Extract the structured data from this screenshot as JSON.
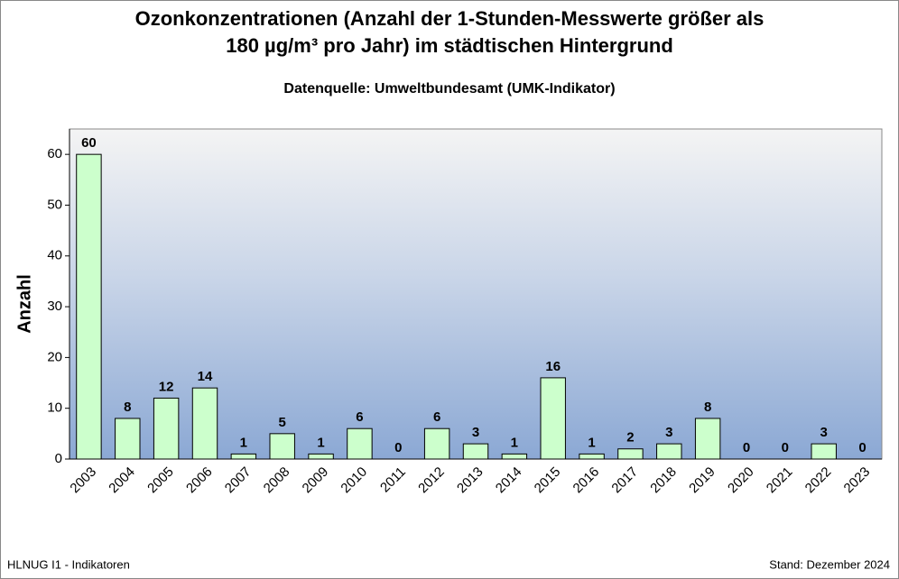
{
  "chart_data": {
    "type": "bar",
    "title": [
      "Ozonkonzentrationen (Anzahl der 1-Stunden-Messwerte größer als",
      "180 µg/m³ pro Jahr) im städtischen Hintergrund"
    ],
    "subtitle": "Datenquelle: Umweltbundesamt (UMK-Indikator)",
    "y_label": "Anzahl",
    "categories": [
      "2003",
      "2004",
      "2005",
      "2006",
      "2007",
      "2008",
      "2009",
      "2010",
      "2011",
      "2012",
      "2013",
      "2014",
      "2015",
      "2016",
      "2017",
      "2018",
      "2019",
      "2020",
      "2021",
      "2022",
      "2023"
    ],
    "values": [
      60,
      8,
      12,
      14,
      1,
      5,
      1,
      6,
      0,
      6,
      3,
      1,
      16,
      1,
      2,
      3,
      8,
      0,
      0,
      3,
      0
    ],
    "color": "#ccffcc",
    "ylim": [
      0,
      65
    ],
    "yticks": [
      0,
      10,
      20,
      30,
      40,
      50,
      60
    ],
    "footer_left": "HLNUG I1 - Indikatoren",
    "footer_right": "Stand: Dezember 2024"
  }
}
